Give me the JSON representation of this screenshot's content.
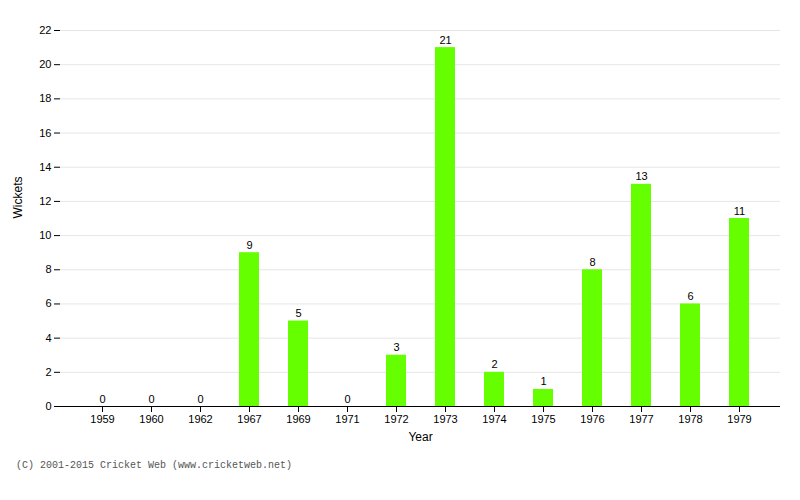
{
  "chart_data": {
    "type": "bar",
    "categories": [
      "1959",
      "1960",
      "1962",
      "1967",
      "1969",
      "1971",
      "1972",
      "1973",
      "1974",
      "1975",
      "1976",
      "1977",
      "1978",
      "1979"
    ],
    "values": [
      0,
      0,
      0,
      9,
      5,
      0,
      3,
      21,
      2,
      1,
      8,
      13,
      6,
      11
    ],
    "color": "#66ff00",
    "xlabel": "Year",
    "ylabel": "Wickets",
    "ylim": [
      0,
      22
    ],
    "yticks": [
      0,
      2,
      4,
      6,
      8,
      10,
      12,
      14,
      16,
      18,
      20,
      22
    ],
    "grid": true,
    "data_labels": true,
    "annotations": [
      "(C) 2001-2015 Cricket Web (www.cricketweb.net)"
    ]
  }
}
